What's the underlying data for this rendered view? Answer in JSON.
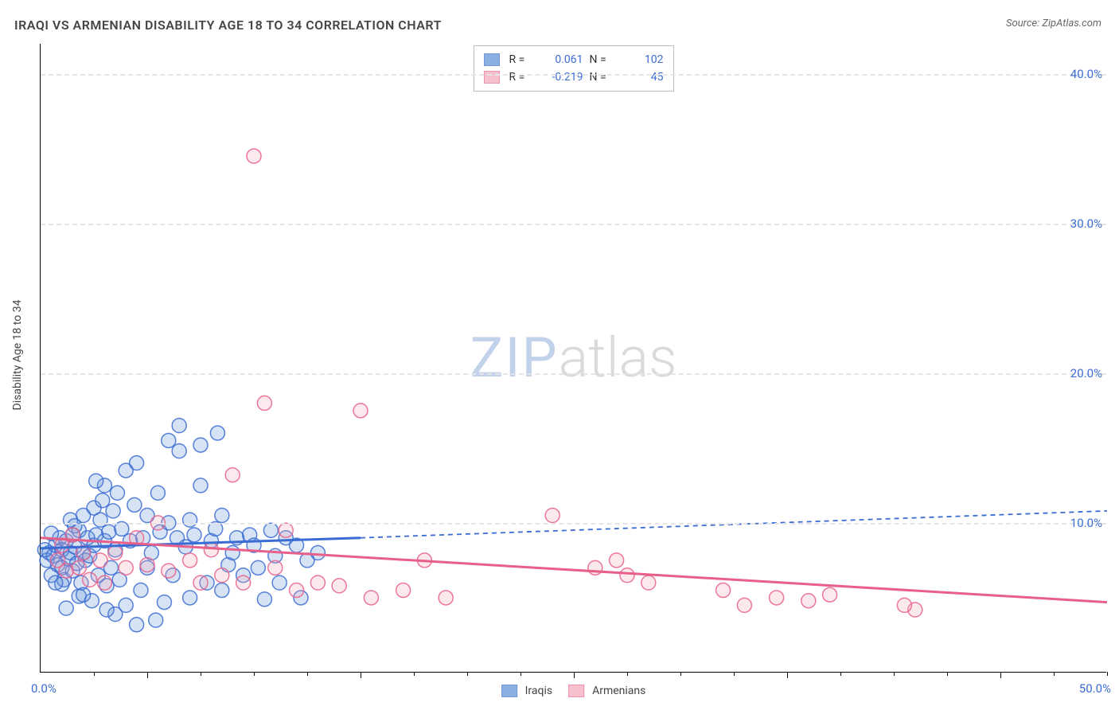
{
  "title": "IRAQI VS ARMENIAN DISABILITY AGE 18 TO 34 CORRELATION CHART",
  "source": "Source: ZipAtlas.com",
  "yaxis_label": "Disability Age 18 to 34",
  "watermark": {
    "zip": "ZIP",
    "atlas": "atlas"
  },
  "chart": {
    "type": "scatter",
    "xlim": [
      0,
      50
    ],
    "ylim": [
      0,
      42
    ],
    "xlim_labels": {
      "min": "0.0%",
      "max": "50.0%"
    },
    "ytick_positions": [
      10,
      20,
      30,
      40
    ],
    "ytick_labels": [
      "10.0%",
      "20.0%",
      "30.0%",
      "40.0%"
    ],
    "xtick_major_positions": [
      5,
      15,
      25,
      35,
      45
    ],
    "xtick_minor_positions": [
      2.5,
      7.5,
      10,
      12.5,
      17.5,
      20,
      22.5,
      27.5,
      30,
      32.5,
      37.5,
      40,
      42.5,
      47.5,
      50
    ],
    "background_color": "#ffffff",
    "grid_color": "#e5e5e5",
    "marker_radius": 9,
    "marker_fill_opacity": 0.25,
    "marker_stroke_opacity": 0.85,
    "line_width": 3,
    "dash_pattern": "6 5"
  },
  "series": {
    "iraqis": {
      "label": "Iraqis",
      "color": "#5a8fd6",
      "stroke_color": "#3b6cd4",
      "R": "0.061",
      "N": "102",
      "trend_solid": {
        "x1": 0,
        "y1": 8.3,
        "x2": 15,
        "y2": 9.0
      },
      "trend_dashed": {
        "x1": 15,
        "y1": 9.0,
        "x2": 50,
        "y2": 10.8
      },
      "points": [
        [
          0.3,
          7.5
        ],
        [
          0.4,
          8.0
        ],
        [
          0.5,
          6.5
        ],
        [
          0.6,
          7.8
        ],
        [
          0.7,
          8.5
        ],
        [
          0.8,
          7.2
        ],
        [
          0.9,
          9.0
        ],
        [
          1.0,
          8.2
        ],
        [
          1.0,
          7.0
        ],
        [
          1.1,
          6.2
        ],
        [
          1.2,
          8.8
        ],
        [
          1.3,
          7.6
        ],
        [
          1.4,
          8.0
        ],
        [
          1.5,
          9.2
        ],
        [
          1.5,
          6.8
        ],
        [
          1.6,
          8.4
        ],
        [
          1.7,
          7.3
        ],
        [
          1.8,
          9.5
        ],
        [
          1.8,
          5.1
        ],
        [
          1.9,
          6.0
        ],
        [
          2.0,
          8.0
        ],
        [
          2.0,
          10.5
        ],
        [
          2.1,
          7.5
        ],
        [
          2.2,
          9.0
        ],
        [
          2.3,
          7.8
        ],
        [
          2.4,
          4.8
        ],
        [
          2.5,
          8.5
        ],
        [
          2.5,
          11.0
        ],
        [
          2.6,
          9.2
        ],
        [
          2.7,
          6.5
        ],
        [
          2.8,
          10.2
        ],
        [
          2.9,
          11.5
        ],
        [
          3.0,
          8.8
        ],
        [
          3.0,
          12.5
        ],
        [
          3.1,
          5.8
        ],
        [
          3.2,
          9.4
        ],
        [
          3.3,
          7.0
        ],
        [
          3.4,
          10.8
        ],
        [
          3.5,
          8.2
        ],
        [
          3.5,
          3.9
        ],
        [
          3.6,
          12.0
        ],
        [
          3.7,
          6.2
        ],
        [
          3.8,
          9.6
        ],
        [
          4.0,
          13.5
        ],
        [
          4.0,
          4.5
        ],
        [
          4.2,
          8.8
        ],
        [
          4.4,
          11.2
        ],
        [
          4.5,
          14.0
        ],
        [
          4.5,
          3.2
        ],
        [
          4.7,
          5.5
        ],
        [
          4.8,
          9.0
        ],
        [
          5.0,
          10.5
        ],
        [
          5.0,
          7.0
        ],
        [
          5.2,
          8.0
        ],
        [
          5.4,
          3.5
        ],
        [
          5.5,
          12.0
        ],
        [
          5.6,
          9.4
        ],
        [
          5.8,
          4.7
        ],
        [
          6.0,
          10.0
        ],
        [
          6.0,
          15.5
        ],
        [
          6.2,
          6.5
        ],
        [
          6.4,
          9.0
        ],
        [
          6.5,
          14.8
        ],
        [
          6.5,
          16.5
        ],
        [
          6.8,
          8.4
        ],
        [
          7.0,
          10.2
        ],
        [
          7.0,
          5.0
        ],
        [
          7.2,
          9.2
        ],
        [
          7.5,
          12.5
        ],
        [
          7.5,
          15.2
        ],
        [
          7.8,
          6.0
        ],
        [
          8.0,
          8.8
        ],
        [
          8.2,
          9.6
        ],
        [
          8.3,
          16.0
        ],
        [
          8.5,
          10.5
        ],
        [
          8.5,
          5.5
        ],
        [
          8.8,
          7.2
        ],
        [
          9.0,
          8.0
        ],
        [
          9.2,
          9.0
        ],
        [
          9.5,
          6.5
        ],
        [
          9.8,
          9.2
        ],
        [
          10.0,
          8.5
        ],
        [
          10.2,
          7.0
        ],
        [
          10.5,
          4.9
        ],
        [
          10.8,
          9.5
        ],
        [
          11.0,
          7.8
        ],
        [
          11.2,
          6.0
        ],
        [
          11.5,
          9.0
        ],
        [
          12.0,
          8.5
        ],
        [
          12.2,
          5.0
        ],
        [
          12.5,
          7.5
        ],
        [
          13.0,
          8.0
        ],
        [
          0.5,
          9.3
        ],
        [
          1.0,
          5.9
        ],
        [
          1.4,
          10.2
        ],
        [
          2.0,
          5.2
        ],
        [
          2.6,
          12.8
        ],
        [
          3.1,
          4.2
        ],
        [
          0.2,
          8.2
        ],
        [
          0.7,
          6.0
        ],
        [
          1.2,
          4.3
        ],
        [
          1.6,
          9.8
        ]
      ]
    },
    "armenians": {
      "label": "Armenians",
      "color": "#f4a6b8",
      "stroke_color": "#e8608a",
      "R": "-0.219",
      "N": "45",
      "trend_solid": {
        "x1": 0,
        "y1": 9.0,
        "x2": 50,
        "y2": 4.7
      },
      "points": [
        [
          0.8,
          7.5
        ],
        [
          1.0,
          8.5
        ],
        [
          1.2,
          6.8
        ],
        [
          1.5,
          9.2
        ],
        [
          1.8,
          7.0
        ],
        [
          2.0,
          8.0
        ],
        [
          2.3,
          6.2
        ],
        [
          2.8,
          7.5
        ],
        [
          3.0,
          6.0
        ],
        [
          3.5,
          8.0
        ],
        [
          4.0,
          7.0
        ],
        [
          4.5,
          9.0
        ],
        [
          5.0,
          7.2
        ],
        [
          5.5,
          10.0
        ],
        [
          6.0,
          6.8
        ],
        [
          7.0,
          7.5
        ],
        [
          7.5,
          6.0
        ],
        [
          8.0,
          8.2
        ],
        [
          8.5,
          6.5
        ],
        [
          9.0,
          13.2
        ],
        [
          9.5,
          6.0
        ],
        [
          10.0,
          34.5
        ],
        [
          10.5,
          18.0
        ],
        [
          11.0,
          7.0
        ],
        [
          11.5,
          9.5
        ],
        [
          12.0,
          5.5
        ],
        [
          13.0,
          6.0
        ],
        [
          14.0,
          5.8
        ],
        [
          15.0,
          17.5
        ],
        [
          15.5,
          5.0
        ],
        [
          17.0,
          5.5
        ],
        [
          18.0,
          7.5
        ],
        [
          19.0,
          5.0
        ],
        [
          24.0,
          10.5
        ],
        [
          26.0,
          7.0
        ],
        [
          27.0,
          7.5
        ],
        [
          27.5,
          6.5
        ],
        [
          28.5,
          6.0
        ],
        [
          32.0,
          5.5
        ],
        [
          33.0,
          4.5
        ],
        [
          34.5,
          5.0
        ],
        [
          36.0,
          4.8
        ],
        [
          37.0,
          5.2
        ],
        [
          41.0,
          4.2
        ],
        [
          40.5,
          4.5
        ]
      ]
    }
  }
}
